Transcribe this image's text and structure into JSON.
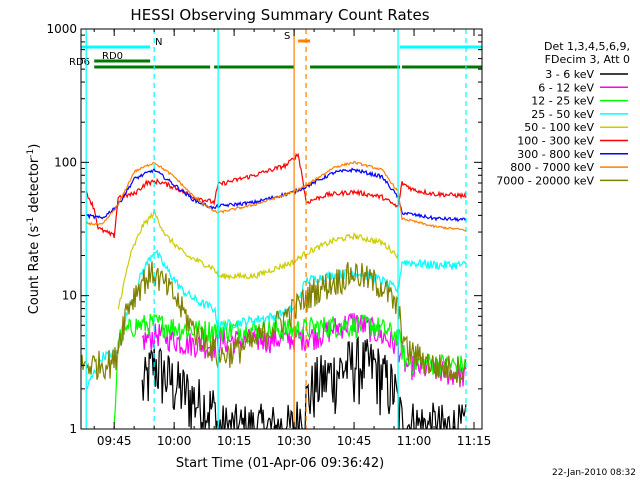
{
  "chart_data": {
    "type": "line",
    "title": "HESSI Observing Summary Count Rates",
    "xlabel": "Start Time (01-Apr-06 09:36:42)",
    "ylabel_main": "Count Rate (s",
    "ylabel_sup1": "-1",
    "ylabel_mid": " detector",
    "ylabel_sup2": "-1",
    "ylabel_end": ")",
    "yscale": "log",
    "ylim": [
      1,
      1000
    ],
    "xlim": [
      "09:36:42",
      "11:17:00"
    ],
    "x_ticks": [
      {
        "t": "09:45",
        "label": "09:45"
      },
      {
        "t": "10:00",
        "label": "10:00"
      },
      {
        "t": "10:15",
        "label": "10:15"
      },
      {
        "t": "10:30",
        "label": "10:30"
      },
      {
        "t": "10:45",
        "label": "10:45"
      },
      {
        "t": "11:00",
        "label": "11:00"
      },
      {
        "t": "11:15",
        "label": "11:15"
      }
    ],
    "y_ticks": [
      {
        "v": 1,
        "label": "1"
      },
      {
        "v": 10,
        "label": "10"
      },
      {
        "v": 100,
        "label": "100"
      },
      {
        "v": 1000,
        "label": "1000"
      }
    ],
    "legend_header": [
      "Det 1,3,4,5,6,9,",
      "FDecim 3, Att 0"
    ],
    "legend_position": "right",
    "footer": "22-Jan-2010 08:32",
    "flag_labels": {
      "night": "N",
      "saa": "S",
      "rd0": "RD0",
      "rd6": "RD6"
    },
    "flags": [
      {
        "name": "N",
        "color": "#00ffff",
        "intervals": [
          [
            "09:36:42",
            "09:54:00"
          ],
          [
            "10:56:30",
            "11:17:00"
          ]
        ]
      },
      {
        "name": "S",
        "color": "#ff8000",
        "intervals": [
          [
            "10:31:00",
            "10:34:00"
          ]
        ]
      },
      {
        "name": "RD0",
        "color": "#007700",
        "intervals": [
          [
            "09:40:00",
            "09:54:00"
          ]
        ]
      },
      {
        "name": "RD6",
        "color": "#007700",
        "intervals": [
          [
            "09:40:00",
            "10:09:00"
          ],
          [
            "10:10:00",
            "10:30:00"
          ],
          [
            "10:34:00",
            "10:56:30"
          ],
          [
            "10:57:00",
            "11:17:00"
          ]
        ]
      }
    ],
    "vlines": [
      {
        "t": "09:38:00",
        "color": "#00ffff",
        "style": "solid"
      },
      {
        "t": "09:55:00",
        "color": "#00ffff",
        "style": "dashed"
      },
      {
        "t": "10:11:00",
        "color": "#00ffff",
        "style": "solid"
      },
      {
        "t": "10:30:00",
        "color": "#ff8000",
        "style": "solid"
      },
      {
        "t": "10:33:00",
        "color": "#ff8000",
        "style": "dashed"
      },
      {
        "t": "10:56:00",
        "color": "#00ffff",
        "style": "solid"
      },
      {
        "t": "11:13:00",
        "color": "#00ffff",
        "style": "dashed"
      }
    ],
    "series": [
      {
        "name": "3 - 6 keV",
        "color": "#000000",
        "noise": 0.55,
        "points": [
          [
            "09:52:00",
            2.0
          ],
          [
            "09:55:00",
            3.2
          ],
          [
            "09:58:00",
            2.5
          ],
          [
            "10:02:00",
            2.0
          ],
          [
            "10:06:00",
            1.6
          ],
          [
            "10:10:00",
            1.4
          ],
          [
            "10:11:00",
            1.0
          ],
          [
            "10:30:00",
            1.0
          ],
          [
            "10:35:00",
            2.2
          ],
          [
            "10:45:00",
            3.2
          ],
          [
            "10:50:00",
            3.0
          ],
          [
            "10:55:00",
            2.0
          ],
          [
            "10:57:00",
            1.1
          ],
          [
            "11:07:00",
            1.0
          ],
          [
            "11:13:00",
            1.0
          ]
        ]
      },
      {
        "name": "6 - 12 keV",
        "color": "#ff00ff",
        "noise": 0.22,
        "points": [
          [
            "09:52:00",
            4.6
          ],
          [
            "09:56:00",
            5.2
          ],
          [
            "10:02:00",
            4.5
          ],
          [
            "10:10:00",
            4.2
          ],
          [
            "10:11:00",
            4.6
          ],
          [
            "10:30:00",
            4.8
          ],
          [
            "10:35:00",
            5.0
          ],
          [
            "10:45:00",
            6.5
          ],
          [
            "10:50:00",
            5.5
          ],
          [
            "10:56:00",
            4.2
          ],
          [
            "10:58:00",
            3.0
          ],
          [
            "11:05:00",
            2.8
          ],
          [
            "11:13:00",
            2.5
          ]
        ]
      },
      {
        "name": "12 - 25 keV",
        "color": "#00ff00",
        "noise": 0.2,
        "points": [
          [
            "09:45:00",
            1.0
          ],
          [
            "09:46:00",
            4.8
          ],
          [
            "09:50:00",
            6.0
          ],
          [
            "09:56:00",
            6.2
          ],
          [
            "10:03:00",
            5.6
          ],
          [
            "10:10:00",
            5.5
          ],
          [
            "10:11:00",
            5.6
          ],
          [
            "10:30:00",
            5.6
          ],
          [
            "10:40:00",
            6.0
          ],
          [
            "10:50:00",
            6.0
          ],
          [
            "10:56:00",
            5.0
          ],
          [
            "10:58:00",
            3.2
          ],
          [
            "11:13:00",
            3.0
          ]
        ]
      },
      {
        "name": "25 - 50 keV",
        "color": "#00ffff",
        "noise": 0.08,
        "points": [
          [
            "09:38:00",
            2.0
          ],
          [
            "09:42:00",
            3.5
          ],
          [
            "09:46:00",
            3.8
          ],
          [
            "09:48:00",
            7.0
          ],
          [
            "09:52:00",
            15.0
          ],
          [
            "09:55:00",
            22.0
          ],
          [
            "09:58:00",
            16.0
          ],
          [
            "10:02:00",
            11.0
          ],
          [
            "10:06:00",
            9.0
          ],
          [
            "10:10:00",
            8.0
          ],
          [
            "10:11:00",
            6.0
          ],
          [
            "10:15:00",
            6.2
          ],
          [
            "10:25:00",
            7.0
          ],
          [
            "10:30:00",
            8.0
          ],
          [
            "10:33:00",
            13.0
          ],
          [
            "10:38:00",
            14.0
          ],
          [
            "10:45:00",
            15.0
          ],
          [
            "10:52:00",
            13.0
          ],
          [
            "10:56:00",
            11.0
          ],
          [
            "10:57:00",
            18.0
          ],
          [
            "11:05:00",
            17.0
          ],
          [
            "11:13:00",
            17.0
          ]
        ]
      },
      {
        "name": "50 - 100 keV",
        "color": "#cccc00",
        "noise": 0.05,
        "points": [
          [
            "09:46:00",
            8.0
          ],
          [
            "09:49:00",
            20.0
          ],
          [
            "09:52:00",
            33.0
          ],
          [
            "09:55:00",
            42.0
          ],
          [
            "09:58:00",
            28.0
          ],
          [
            "10:03:00",
            20.0
          ],
          [
            "10:10:00",
            16.0
          ],
          [
            "10:11:00",
            14.0
          ],
          [
            "10:20:00",
            14.0
          ],
          [
            "10:30:00",
            18.0
          ],
          [
            "10:33:00",
            21.0
          ],
          [
            "10:40:00",
            26.0
          ],
          [
            "10:45:00",
            28.0
          ],
          [
            "10:52:00",
            25.0
          ],
          [
            "10:56:00",
            20.0
          ]
        ]
      },
      {
        "name": "100 - 300 keV",
        "color": "#ff0000",
        "noise": 0.04,
        "points": [
          [
            "09:38:00",
            60.0
          ],
          [
            "09:40:00",
            45.0
          ],
          [
            "09:41:00",
            32.0
          ],
          [
            "09:45:00",
            28.0
          ],
          [
            "09:46:00",
            55.0
          ],
          [
            "09:50:00",
            58.0
          ],
          [
            "09:53:00",
            70.0
          ],
          [
            "09:56:00",
            72.0
          ],
          [
            "10:00:00",
            65.0
          ],
          [
            "10:05:00",
            55.0
          ],
          [
            "10:10:00",
            50.0
          ],
          [
            "10:11:00",
            68.0
          ],
          [
            "10:20:00",
            80.0
          ],
          [
            "10:28:00",
            95.0
          ],
          [
            "10:31:00",
            115.0
          ],
          [
            "10:32:00",
            80.0
          ],
          [
            "10:33:00",
            50.0
          ],
          [
            "10:38:00",
            57.0
          ],
          [
            "10:45:00",
            60.0
          ],
          [
            "10:52:00",
            55.0
          ],
          [
            "10:56:00",
            46.0
          ],
          [
            "10:57:00",
            70.0
          ],
          [
            "11:00:00",
            62.0
          ],
          [
            "11:05:00",
            58.0
          ],
          [
            "11:13:00",
            56.0
          ]
        ]
      },
      {
        "name": "300 - 800 keV",
        "color": "#0000ff",
        "noise": 0.03,
        "points": [
          [
            "09:38:00",
            40.0
          ],
          [
            "09:42:00",
            38.0
          ],
          [
            "09:46:00",
            48.0
          ],
          [
            "09:50:00",
            75.0
          ],
          [
            "09:55:00",
            88.0
          ],
          [
            "10:00:00",
            68.0
          ],
          [
            "10:05:00",
            52.0
          ],
          [
            "10:10:00",
            45.0
          ],
          [
            "10:11:00",
            47.0
          ],
          [
            "10:20:00",
            50.0
          ],
          [
            "10:30:00",
            60.0
          ],
          [
            "10:34:00",
            68.0
          ],
          [
            "10:40:00",
            84.0
          ],
          [
            "10:45:00",
            88.0
          ],
          [
            "10:52:00",
            78.0
          ],
          [
            "10:56:00",
            55.0
          ],
          [
            "10:57:00",
            42.0
          ],
          [
            "11:05:00",
            38.0
          ],
          [
            "11:13:00",
            37.0
          ]
        ]
      },
      {
        "name": "800 - 7000 keV",
        "color": "#ff8000",
        "noise": 0.02,
        "points": [
          [
            "09:38:00",
            35.0
          ],
          [
            "09:42:00",
            34.0
          ],
          [
            "09:46:00",
            48.0
          ],
          [
            "09:50:00",
            85.0
          ],
          [
            "09:55:00",
            100.0
          ],
          [
            "10:00:00",
            78.0
          ],
          [
            "10:05:00",
            55.0
          ],
          [
            "10:10:00",
            43.0
          ],
          [
            "10:11:00",
            42.0
          ],
          [
            "10:20:00",
            48.0
          ],
          [
            "10:30:00",
            60.0
          ],
          [
            "10:34:00",
            70.0
          ],
          [
            "10:40:00",
            92.0
          ],
          [
            "10:45:00",
            100.0
          ],
          [
            "10:52:00",
            88.0
          ],
          [
            "10:56:00",
            60.0
          ],
          [
            "10:57:00",
            38.0
          ],
          [
            "11:05:00",
            33.0
          ],
          [
            "11:13:00",
            31.0
          ]
        ]
      },
      {
        "name": "7000 - 20000 keV",
        "color": "#808000",
        "noise": 0.25,
        "points": [
          [
            "09:36:42",
            3.0
          ],
          [
            "09:45:00",
            3.2
          ],
          [
            "09:48:00",
            8.0
          ],
          [
            "09:52:00",
            13.0
          ],
          [
            "09:55:00",
            15.0
          ],
          [
            "10:00:00",
            10.0
          ],
          [
            "10:05:00",
            5.5
          ],
          [
            "10:10:00",
            4.0
          ],
          [
            "10:11:00",
            3.5
          ],
          [
            "10:20:00",
            4.5
          ],
          [
            "10:30:00",
            8.0
          ],
          [
            "10:35:00",
            11.0
          ],
          [
            "10:45:00",
            15.0
          ],
          [
            "10:52:00",
            12.0
          ],
          [
            "10:56:00",
            8.0
          ],
          [
            "10:58:00",
            4.0
          ],
          [
            "11:05:00",
            3.0
          ],
          [
            "11:13:00",
            2.8
          ]
        ]
      }
    ]
  }
}
